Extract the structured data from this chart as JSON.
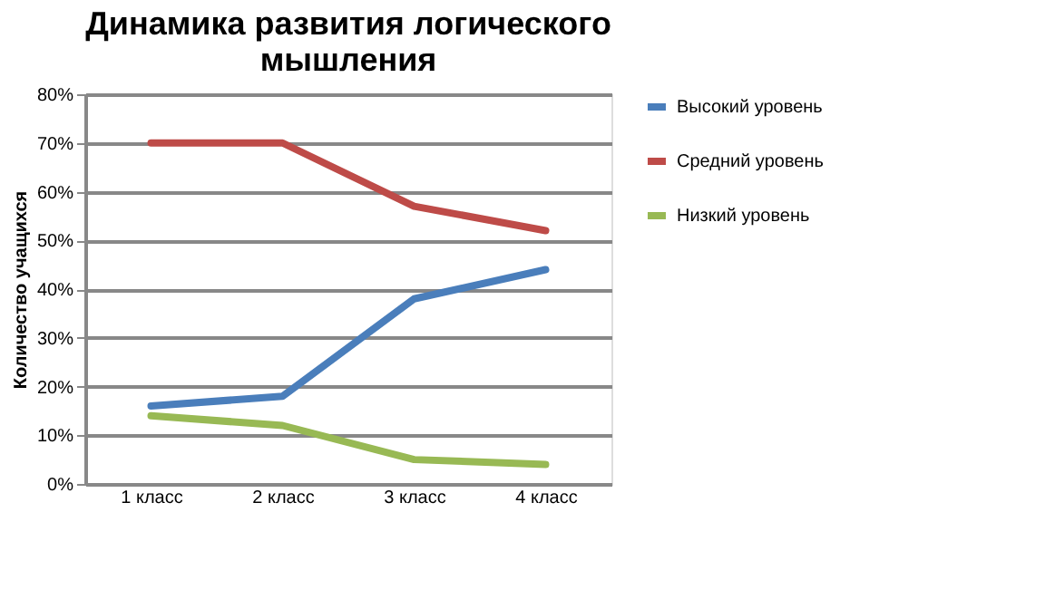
{
  "chart_data": {
    "type": "line",
    "title": "Динамика развития логического мышления",
    "ylabel": "Количество учащихся",
    "categories": [
      "1 класс",
      "2 класс",
      "3 класс",
      "4 класс"
    ],
    "series": [
      {
        "name": "Высокий уровень",
        "color": "#4a7ebb",
        "values": [
          0.16,
          0.18,
          0.38,
          0.44
        ]
      },
      {
        "name": "Средний уровень",
        "color": "#be4b48",
        "values": [
          0.7,
          0.7,
          0.57,
          0.52
        ]
      },
      {
        "name": "Низкий уровень",
        "color": "#98b954",
        "values": [
          0.14,
          0.12,
          0.05,
          0.04
        ]
      }
    ],
    "ylim": [
      0,
      0.8
    ],
    "yticks": [
      {
        "value": 0,
        "label": "0%"
      },
      {
        "value": 0.1,
        "label": "10%"
      },
      {
        "value": 0.2,
        "label": "20%"
      },
      {
        "value": 0.3,
        "label": "30%"
      },
      {
        "value": 0.4,
        "label": "40%"
      },
      {
        "value": 0.5,
        "label": "50%"
      },
      {
        "value": 0.6,
        "label": "60%"
      },
      {
        "value": 0.7,
        "label": "70%"
      },
      {
        "value": 0.8,
        "label": "80%"
      }
    ],
    "grid": "y",
    "legend": "right",
    "marker": "none",
    "line_style": "solid"
  }
}
